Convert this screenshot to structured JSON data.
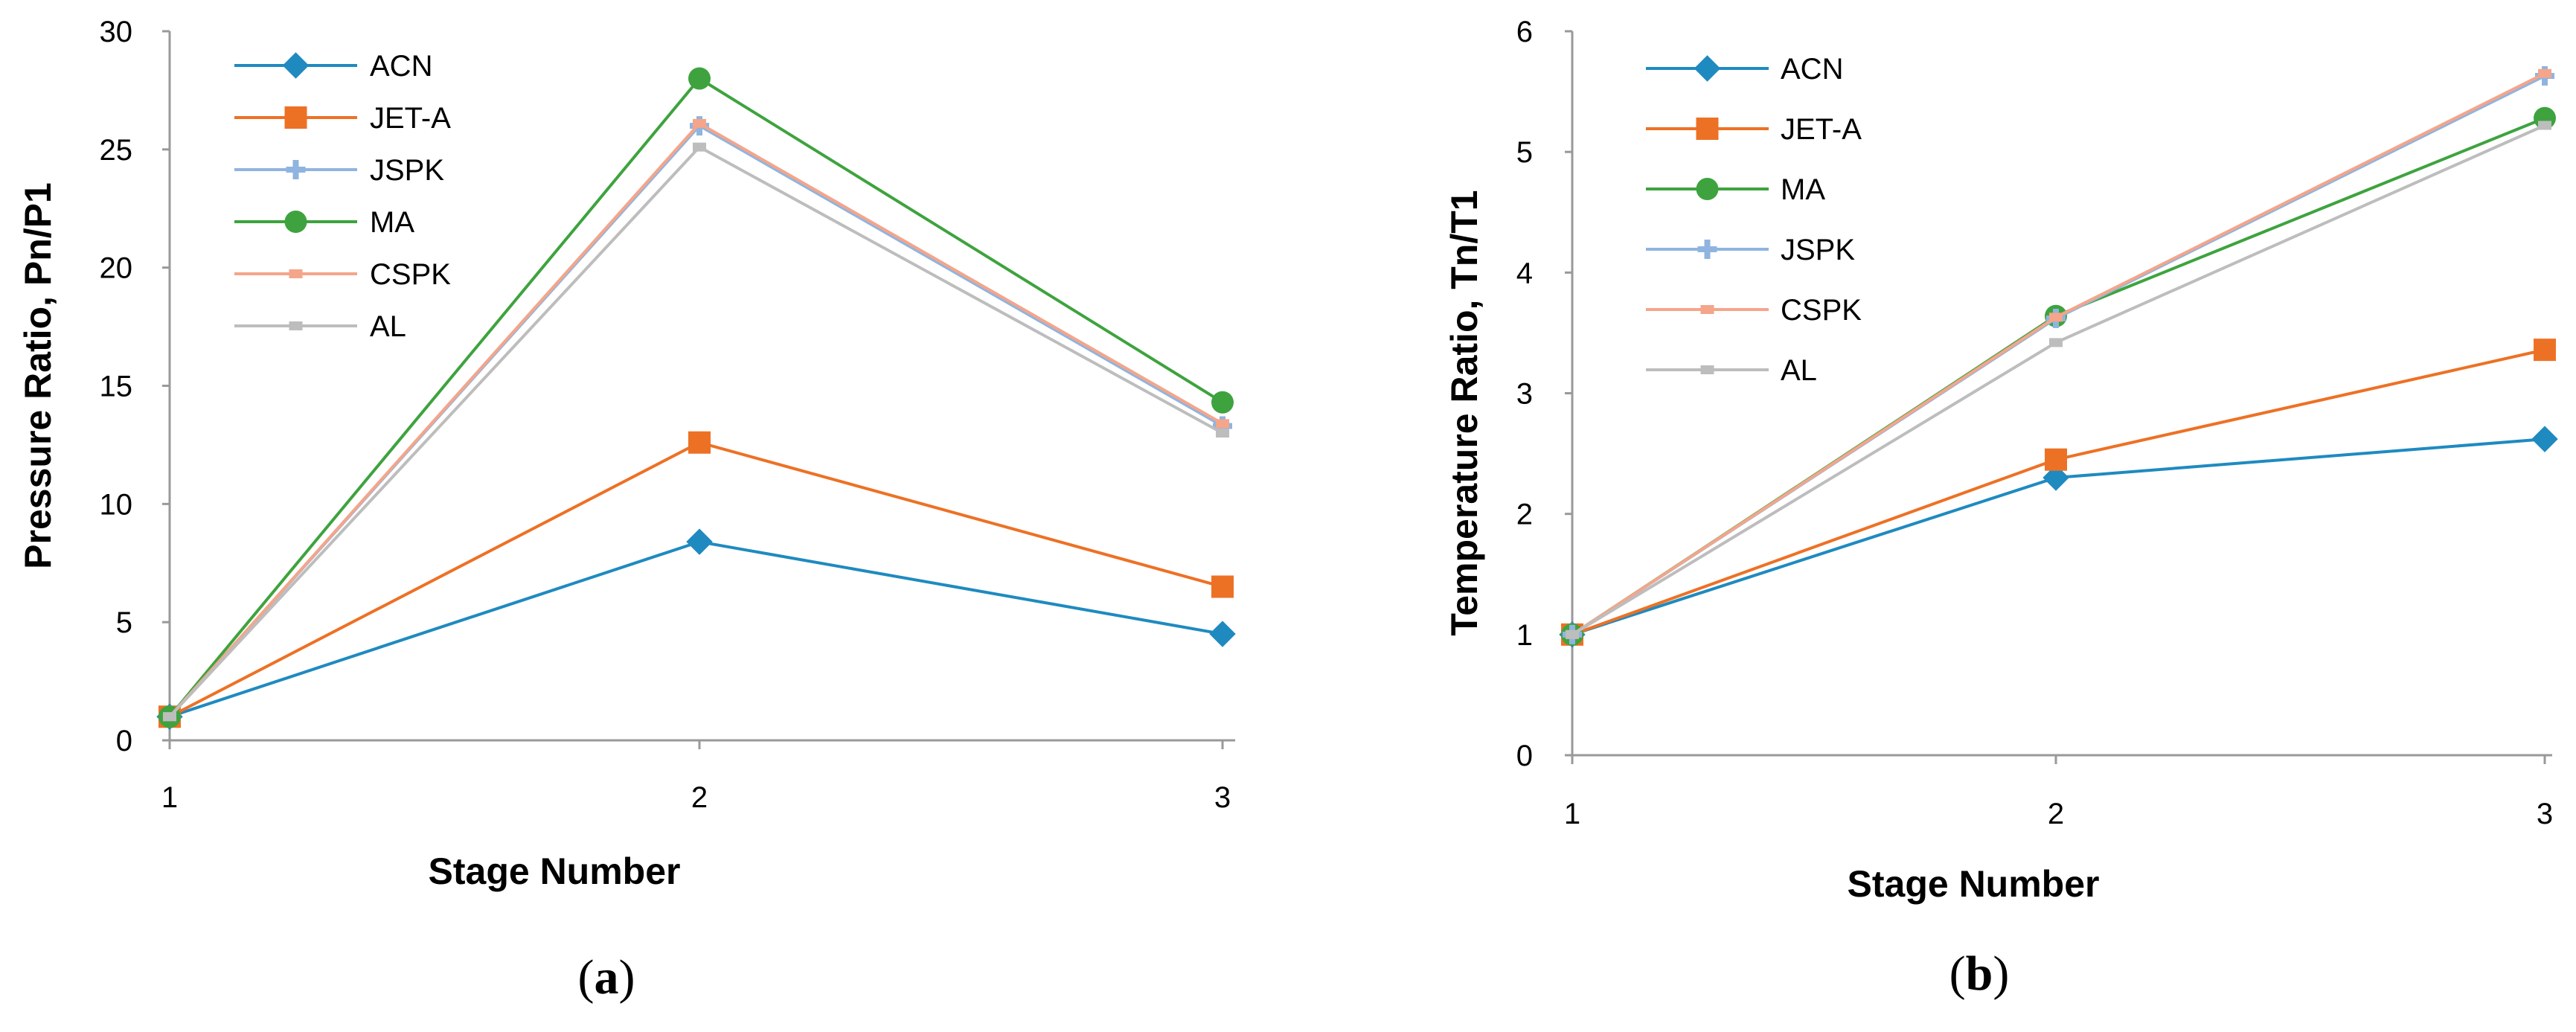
{
  "chart_data": [
    {
      "type": "line",
      "panel_label": "a",
      "title": "",
      "xlabel": "Stage Number",
      "ylabel": "Pressure Ratio, Pn/P1",
      "categories": [
        "1",
        "2",
        "3"
      ],
      "ylim": [
        0,
        30
      ],
      "yticks": [
        0,
        5,
        10,
        15,
        20,
        25,
        30
      ],
      "grid": false,
      "legend_position": "top-left",
      "series": [
        {
          "name": "ACN",
          "values": [
            1,
            8.4,
            4.5
          ],
          "color": "#1f8ac0",
          "marker": "diamond"
        },
        {
          "name": "JET-A",
          "values": [
            1,
            12.6,
            6.5
          ],
          "color": "#ed7125",
          "marker": "square"
        },
        {
          "name": "JSPK",
          "values": [
            1,
            26.0,
            13.3
          ],
          "color": "#8fb4e0",
          "marker": "plus"
        },
        {
          "name": "MA",
          "values": [
            1,
            28.0,
            14.3
          ],
          "color": "#3ea33e",
          "marker": "circle"
        },
        {
          "name": "CSPK",
          "values": [
            1,
            26.1,
            13.4
          ],
          "color": "#f4a58a",
          "marker": "small-square"
        },
        {
          "name": "AL",
          "values": [
            1,
            25.1,
            13.0
          ],
          "color": "#bdbdbd",
          "marker": "small-square"
        }
      ]
    },
    {
      "type": "line",
      "panel_label": "b",
      "title": "",
      "xlabel": "Stage Number",
      "ylabel": "Temperature Ratio, Tn/T1",
      "categories": [
        "1",
        "2",
        "3"
      ],
      "ylim": [
        0,
        6
      ],
      "yticks": [
        0,
        1,
        2,
        3,
        4,
        5,
        6
      ],
      "grid": false,
      "legend_position": "top-left",
      "series": [
        {
          "name": "ACN",
          "values": [
            1,
            2.3,
            2.62
          ],
          "color": "#1f8ac0",
          "marker": "diamond"
        },
        {
          "name": "JET-A",
          "values": [
            1,
            2.45,
            3.36
          ],
          "color": "#ed7125",
          "marker": "square"
        },
        {
          "name": "MA",
          "values": [
            1,
            3.64,
            5.28
          ],
          "color": "#3ea33e",
          "marker": "circle"
        },
        {
          "name": "JSPK",
          "values": [
            1,
            3.62,
            5.63
          ],
          "color": "#8fb4e0",
          "marker": "plus"
        },
        {
          "name": "CSPK",
          "values": [
            1,
            3.63,
            5.65
          ],
          "color": "#f4a58a",
          "marker": "small-square"
        },
        {
          "name": "AL",
          "values": [
            1,
            3.42,
            5.22
          ],
          "color": "#bdbdbd",
          "marker": "small-square"
        }
      ]
    }
  ]
}
